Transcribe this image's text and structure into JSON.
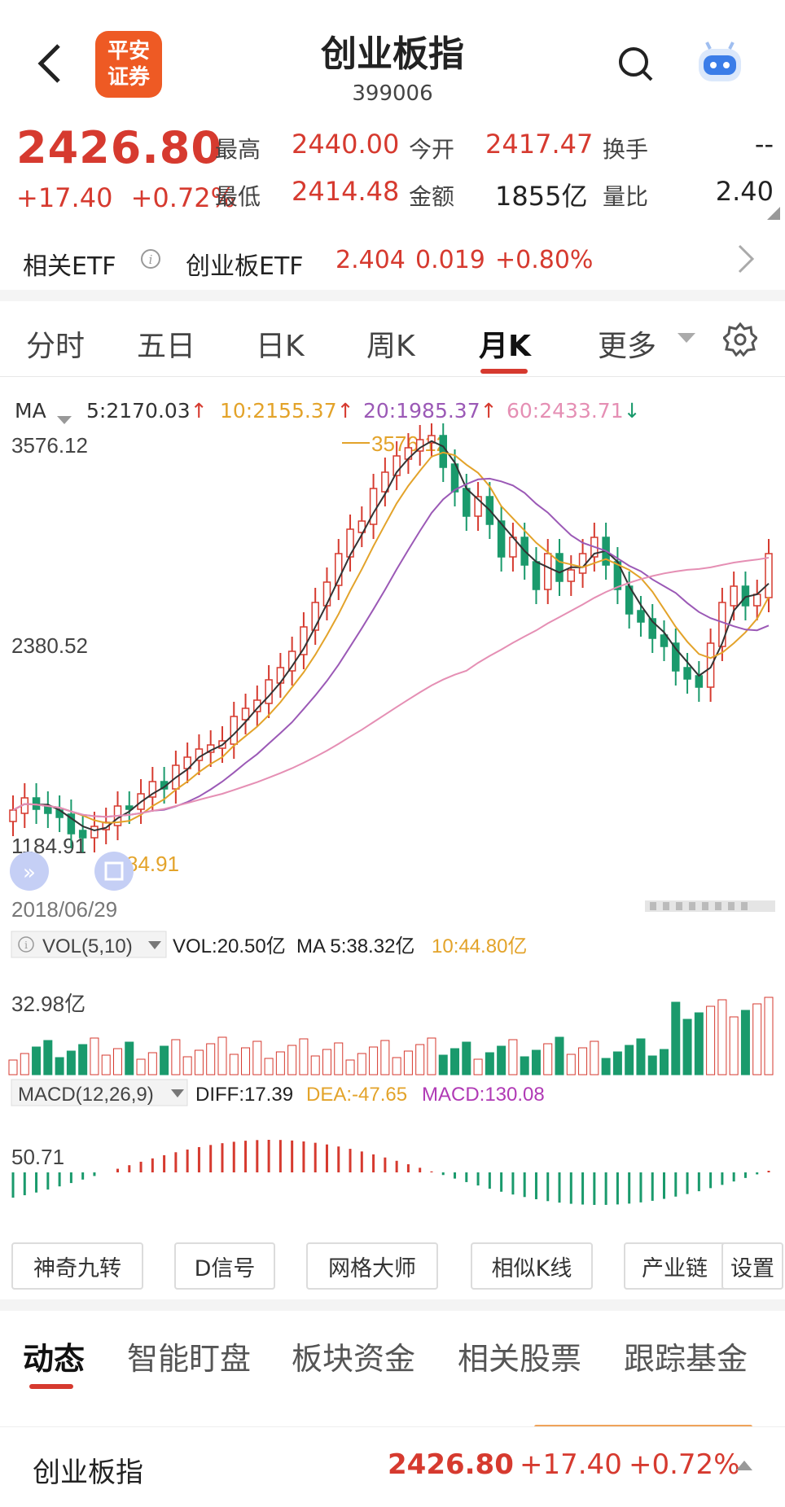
{
  "header": {
    "logo_line1": "平安",
    "logo_line2": "证券",
    "title": "创业板指",
    "code": "399006"
  },
  "quote": {
    "price": "2426.80",
    "change": "+17.40",
    "change_pct": "+0.72%",
    "stats": [
      {
        "label": "最高",
        "value": "2440.00",
        "color": "up"
      },
      {
        "label": "今开",
        "value": "2417.47",
        "color": "up"
      },
      {
        "label": "换手",
        "value": "--",
        "color": "neutral"
      },
      {
        "label": "最低",
        "value": "2414.48",
        "color": "up"
      },
      {
        "label": "金额",
        "value": "1855亿",
        "color": "neutral"
      },
      {
        "label": "量比",
        "value": "2.40",
        "color": "neutral"
      }
    ]
  },
  "etf": {
    "label": "相关ETF",
    "name": "创业板ETF",
    "price": "2.404",
    "change": "0.019",
    "change_pct": "+0.80%"
  },
  "kline_tabs": [
    "分时",
    "五日",
    "日K",
    "周K",
    "月K",
    "更多"
  ],
  "active_kline_tab": "月K",
  "ma_legend": {
    "label": "MA",
    "items": [
      {
        "text": "5:2170.03",
        "arrow": "↑",
        "color": "#333333",
        "arrow_color": "#d63a2f"
      },
      {
        "text": "10:2155.37",
        "arrow": "↑",
        "color": "#e3a32a",
        "arrow_color": "#d63a2f"
      },
      {
        "text": "20:1985.37",
        "arrow": "↑",
        "color": "#9b59b6",
        "arrow_color": "#d63a2f"
      },
      {
        "text": "60:2433.71",
        "arrow": "↓",
        "color": "#e58fb4",
        "arrow_color": "#1a9a6c"
      }
    ]
  },
  "chart": {
    "y_max_label": "3576.12",
    "y_mid_label": "2380.52",
    "y_min_label": "1184.91",
    "peak_label": "3576.12",
    "low_label": "1184.91",
    "start_date": "2018/06/29",
    "vol_legend": {
      "label": "VOL(5,10)",
      "vol": "VOL:20.50亿",
      "ma5": "MA 5:38.32亿",
      "ma10": "10:44.80亿"
    },
    "vol_axis_label": "32.98亿",
    "macd_legend": {
      "label": "MACD(12,26,9)",
      "diff": "DIFF:17.39",
      "dea": "DEA:-47.65",
      "macd": "MACD:130.08"
    },
    "macd_axis_label": "50.71"
  },
  "colors": {
    "up": "#d63a2f",
    "down": "#1a9a6c",
    "ma5": "#333333",
    "ma10": "#e3a32a",
    "ma20": "#9b59b6",
    "ma60": "#e58fb4"
  },
  "tools": [
    "神奇九转",
    "D信号",
    "网格大师",
    "相似K线",
    "产业链",
    "设置"
  ],
  "bottom_tabs": [
    "动态",
    "智能盯盘",
    "板块资金",
    "相关股票",
    "跟踪基金"
  ],
  "footer": {
    "name": "创业板指",
    "price": "2426.80",
    "change": "+17.40",
    "change_pct": "+0.72%"
  }
}
